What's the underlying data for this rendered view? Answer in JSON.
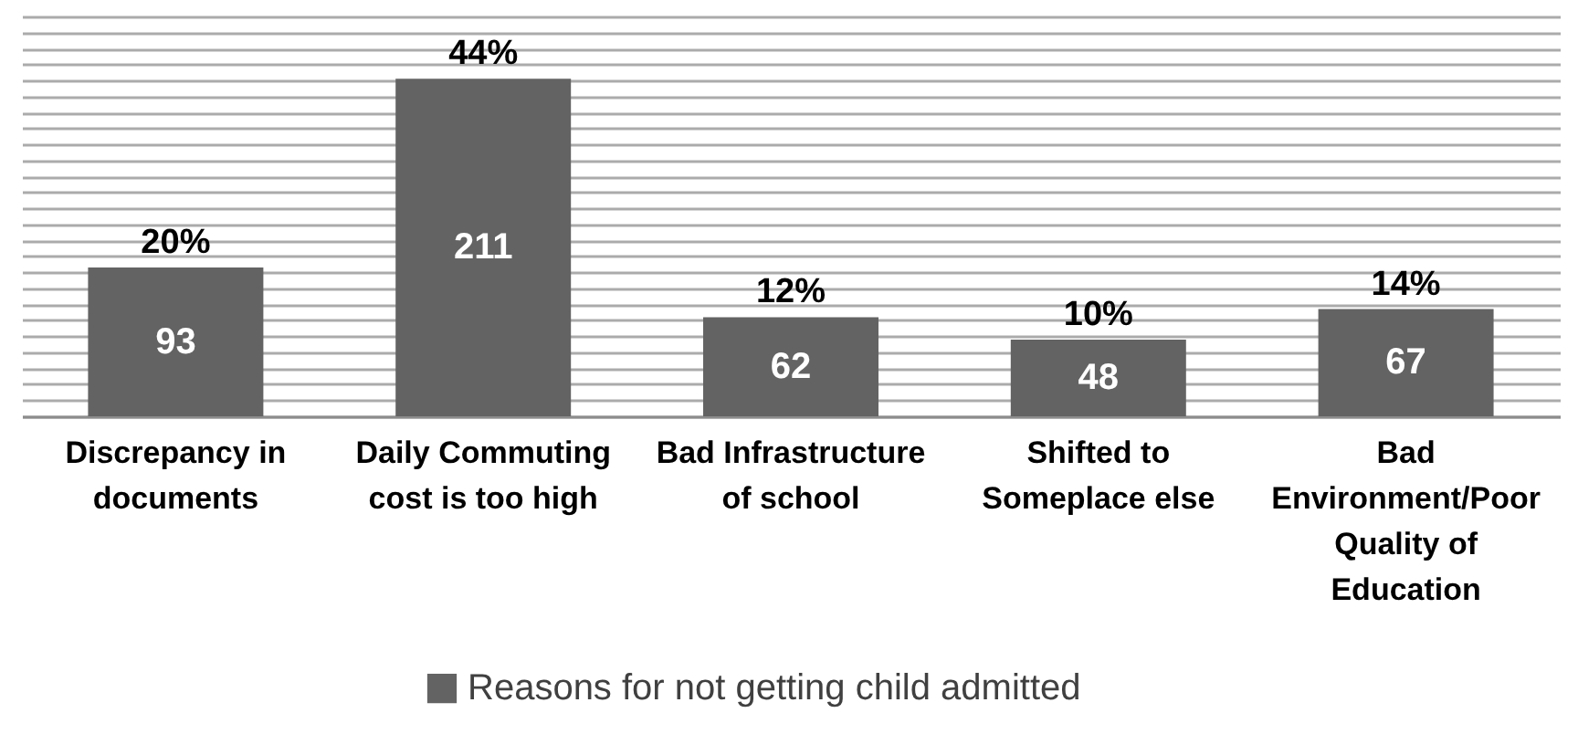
{
  "chart_data": {
    "type": "bar",
    "categories": [
      "Discrepancy in documents",
      "Daily Commuting cost is too high",
      "Bad Infrastructure of school",
      "Shifted to Someplace else",
      "Bad Environment/Poor Quality of Education"
    ],
    "series": [
      {
        "name": "Reasons for not getting child admitted",
        "color": "#636363",
        "values": [
          93,
          211,
          62,
          48,
          67
        ]
      }
    ],
    "ylim": [
      0,
      250
    ],
    "tick_labels": "x",
    "grid": "y",
    "legend": "bottom",
    "data_labels": true,
    "annotations": [
      {
        "text": "20%",
        "x": "Discrepancy in documents",
        "y": 93
      },
      {
        "text": "44%",
        "x": "Daily Commuting cost is too high",
        "y": 211
      },
      {
        "text": "12%",
        "x": "Bad Infrastructure of school",
        "y": 62
      },
      {
        "text": "10%",
        "x": "Shifted to Someplace else",
        "y": 48
      },
      {
        "text": "14%",
        "x": "Bad Environment/Poor Quality of Education",
        "y": 67
      }
    ]
  }
}
